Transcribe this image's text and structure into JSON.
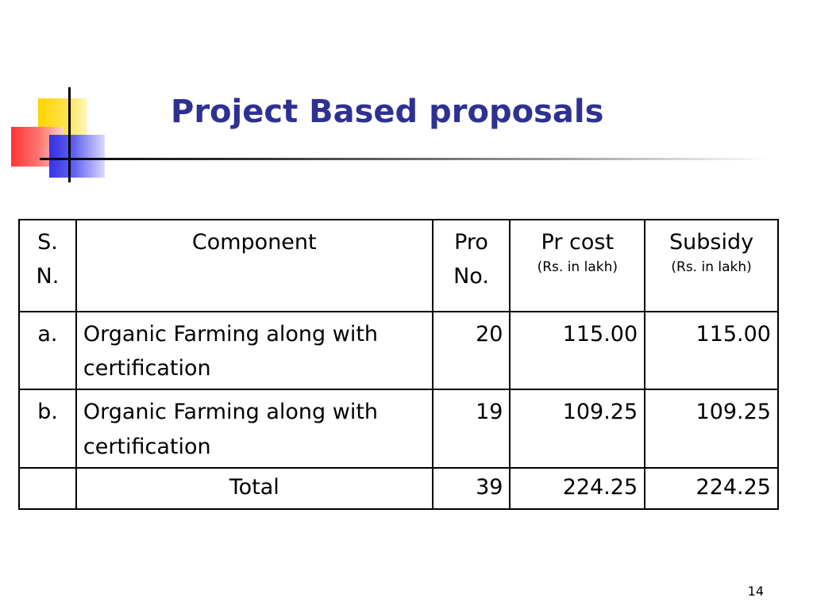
{
  "slide": {
    "title": "Project Based proposals",
    "page_number": "14"
  },
  "table": {
    "headers": {
      "sn": [
        "S.",
        "N."
      ],
      "component": "Component",
      "pro_no": [
        "Pro",
        "No."
      ],
      "pr_cost": "Pr cost",
      "pr_cost_unit": "(Rs. in lakh)",
      "subsidy": "Subsidy",
      "subsidy_unit": "(Rs. in lakh)"
    },
    "rows": [
      {
        "sn": "a.",
        "component": "Organic Farming along with certification",
        "pro_no": "20",
        "pr_cost": "115.00",
        "subsidy": "115.00"
      },
      {
        "sn": "b.",
        "component": "Organic Farming along with certification",
        "pro_no": "19",
        "pr_cost": "109.25",
        "subsidy": "109.25"
      }
    ],
    "total": {
      "label": "Total",
      "pro_no": "39",
      "pr_cost": "224.25",
      "subsidy": "224.25"
    }
  }
}
